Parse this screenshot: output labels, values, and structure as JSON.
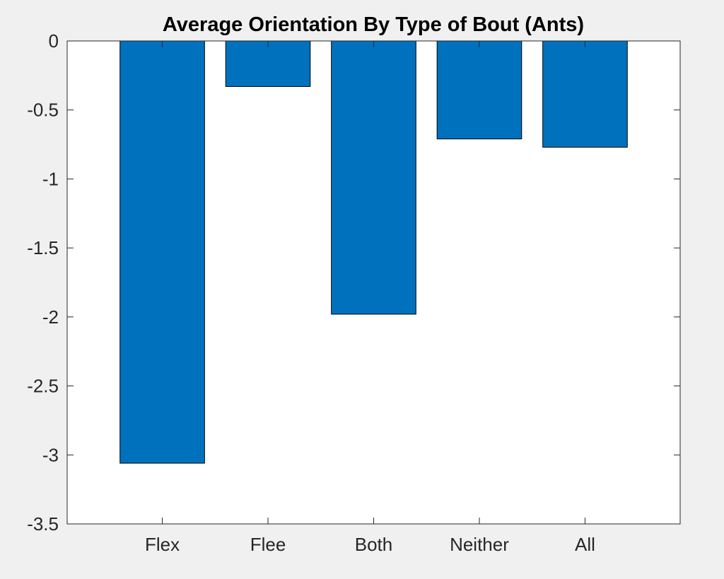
{
  "chart_data": {
    "type": "bar",
    "title": "Average Orientation By Type of Bout (Ants)",
    "xlabel": "",
    "ylabel": "",
    "categories": [
      "Flex",
      "Flee",
      "Both",
      "Neither",
      "All"
    ],
    "values": [
      -3.06,
      -0.33,
      -1.98,
      -0.71,
      -0.77
    ],
    "ylim": [
      -3.5,
      0
    ],
    "yticks": [
      0,
      -0.5,
      -1,
      -1.5,
      -2,
      -2.5,
      -3,
      -3.5
    ],
    "ytick_labels": [
      "0",
      "-0.5",
      "-1",
      "-1.5",
      "-2",
      "-2.5",
      "-3",
      "-3.5"
    ],
    "bar_color": "#0072bd",
    "grid": false,
    "legend": "none"
  }
}
